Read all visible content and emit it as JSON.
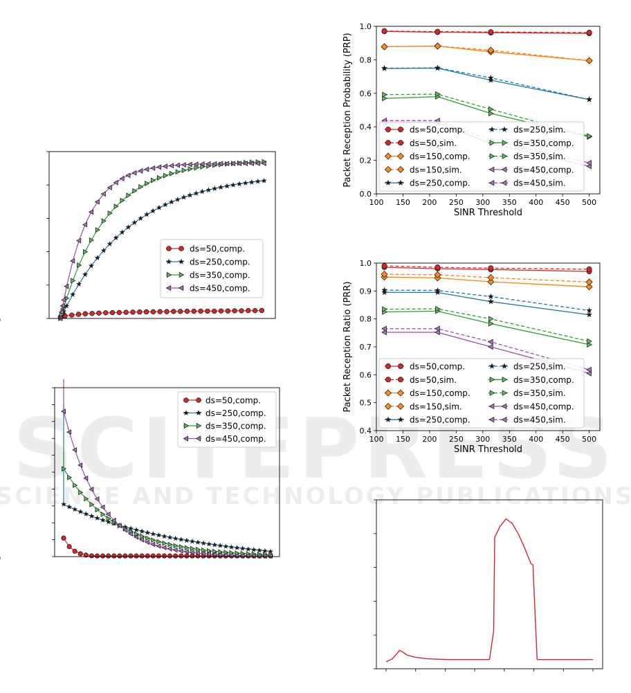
{
  "watermark": {
    "line1": "SCITEPRESS",
    "line2": "SCIENCE AND TECHNOLOGY PUBLICATIONS"
  },
  "colors": {
    "red": "#d62728",
    "redFill": "#d62728",
    "orange": "#ff7f0e",
    "orangeFill": "#ff8c1a",
    "blue": "#1f77b4",
    "blueFill": "#1f3040",
    "green": "#2ca02c",
    "greenFill": "#5cc05c",
    "purple": "#9b4ea8",
    "purpleFill": "#b070c0"
  },
  "chart_data": [
    {
      "id": "top-left",
      "type": "line",
      "title": "",
      "xlabel": "",
      "ylabel": "",
      "xlim": [
        0,
        1
      ],
      "ylim": [
        0,
        1
      ],
      "grid": false,
      "legend": "center-right",
      "series": [
        {
          "name": "ds=50,comp.",
          "color": "red",
          "marker": "o",
          "linestyle": "solid",
          "x": [
            0.05,
            0.07,
            0.1,
            0.13,
            0.16,
            0.19,
            0.22,
            0.25,
            0.28,
            0.31,
            0.34,
            0.37,
            0.4,
            0.43,
            0.46,
            0.49,
            0.52,
            0.55,
            0.58,
            0.61,
            0.64,
            0.67,
            0.7,
            0.73,
            0.76,
            0.79,
            0.82,
            0.85,
            0.88,
            0.91,
            0.94
          ],
          "y": [
            0.01,
            0.015,
            0.02,
            0.025,
            0.028,
            0.03,
            0.032,
            0.034,
            0.035,
            0.036,
            0.037,
            0.038,
            0.039,
            0.04,
            0.04,
            0.041,
            0.041,
            0.042,
            0.042,
            0.043,
            0.043,
            0.044,
            0.044,
            0.044,
            0.045,
            0.045,
            0.046,
            0.046,
            0.047,
            0.047,
            0.048
          ]
        },
        {
          "name": "ds=250,comp.",
          "color": "blue",
          "marker": "*",
          "linestyle": "solid",
          "x": [],
          "y": [],
          "gen": {
            "k": 3.3,
            "A": 0.87
          }
        },
        {
          "name": "ds=350,comp.",
          "color": "green",
          "marker": ">",
          "linestyle": "solid",
          "x": [],
          "y": [],
          "gen": {
            "k": 5.0,
            "A": 0.95
          }
        },
        {
          "name": "ds=450,comp.",
          "color": "purple",
          "marker": "<",
          "linestyle": "solid",
          "x": [],
          "y": [],
          "gen": {
            "k": 8.5,
            "A": 0.93
          }
        }
      ]
    },
    {
      "id": "top-right",
      "type": "line",
      "title": "",
      "xlabel": "SINR Threshold",
      "ylabel": "Packet Reception Probability (PRP)",
      "xlim": [
        100,
        520
      ],
      "ylim": [
        0.0,
        1.0
      ],
      "xticks": [
        100,
        150,
        200,
        250,
        300,
        350,
        400,
        450,
        500
      ],
      "yticks": [
        0.0,
        0.2,
        0.4,
        0.6,
        0.8,
        1.0
      ],
      "ytick_labels": [
        "0.0",
        "0.2",
        "0.4",
        "0.6",
        "0.8",
        "1.0"
      ],
      "grid": false,
      "legend": "lower-center",
      "x": [
        115,
        215,
        315,
        500
      ],
      "series": [
        {
          "name": "ds=50,comp.",
          "color": "red",
          "marker": "o",
          "dashed": false,
          "y": [
            0.97,
            0.965,
            0.962,
            0.958
          ]
        },
        {
          "name": "ds=50,sim.",
          "color": "red",
          "marker": "o",
          "dashed": true,
          "y": [
            0.972,
            0.968,
            0.966,
            0.963
          ]
        },
        {
          "name": "ds=150,comp.",
          "color": "orange",
          "marker": "D",
          "dashed": false,
          "y": [
            0.878,
            0.882,
            0.848,
            0.795
          ]
        },
        {
          "name": "ds=150,sim.",
          "color": "orange",
          "marker": "D",
          "dashed": true,
          "y": [
            0.878,
            0.882,
            0.857,
            0.795
          ]
        },
        {
          "name": "ds=250,comp.",
          "color": "blue",
          "marker": "*",
          "dashed": false,
          "y": [
            0.748,
            0.75,
            0.678,
            0.563
          ]
        },
        {
          "name": "ds=250,sim.",
          "color": "blue",
          "marker": "*",
          "dashed": true,
          "y": [
            0.75,
            0.752,
            0.692,
            0.563
          ]
        },
        {
          "name": "ds=350,comp.",
          "color": "green",
          "marker": ">",
          "dashed": false,
          "y": [
            0.57,
            0.58,
            0.48,
            0.34
          ]
        },
        {
          "name": "ds=350,sim.",
          "color": "green",
          "marker": ">",
          "dashed": true,
          "y": [
            0.592,
            0.595,
            0.505,
            0.345
          ]
        },
        {
          "name": "ds=450,comp.",
          "color": "purple",
          "marker": "<",
          "dashed": false,
          "y": [
            0.425,
            0.425,
            0.3,
            0.165
          ]
        },
        {
          "name": "ds=450,sim.",
          "color": "purple",
          "marker": "<",
          "dashed": true,
          "y": [
            0.437,
            0.437,
            0.32,
            0.185
          ]
        }
      ]
    },
    {
      "id": "mid-left",
      "type": "line",
      "title": "",
      "xlabel": "",
      "ylabel": "",
      "xlim": [
        0,
        1
      ],
      "ylim": [
        0,
        1
      ],
      "grid": false,
      "legend": "top-right",
      "series": [
        {
          "name": "ds=50,comp.",
          "color": "red",
          "marker": "o"
        },
        {
          "name": "ds=250,comp.",
          "color": "blue",
          "marker": "*"
        },
        {
          "name": "ds=350,comp.",
          "color": "green",
          "marker": ">"
        },
        {
          "name": "ds=450,comp.",
          "color": "purple",
          "marker": "<"
        }
      ]
    },
    {
      "id": "mid-right",
      "type": "line",
      "title": "",
      "xlabel": "SINR Threshold",
      "ylabel": "Packet Reception Ratio (PRR)",
      "xlim": [
        100,
        520
      ],
      "ylim": [
        0.4,
        1.0
      ],
      "xticks": [
        100,
        150,
        200,
        250,
        300,
        350,
        400,
        450,
        500
      ],
      "yticks": [
        0.4,
        0.5,
        0.6,
        0.7,
        0.8,
        0.9,
        1.0
      ],
      "ytick_labels": [
        "0.4",
        "0.5",
        "0.6",
        "0.7",
        "0.8",
        "0.9",
        "1.0"
      ],
      "grid": false,
      "legend": "lower-center",
      "x": [
        115,
        215,
        315,
        500
      ],
      "series": [
        {
          "name": "ds=50,comp.",
          "color": "red",
          "marker": "o",
          "dashed": false,
          "y": [
            0.985,
            0.98,
            0.977,
            0.97
          ]
        },
        {
          "name": "ds=50,sim.",
          "color": "red",
          "marker": "o",
          "dashed": true,
          "y": [
            0.99,
            0.985,
            0.982,
            0.978
          ]
        },
        {
          "name": "ds=150,comp.",
          "color": "orange",
          "marker": "D",
          "dashed": false,
          "y": [
            0.95,
            0.947,
            0.933,
            0.915
          ]
        },
        {
          "name": "ds=150,sim.",
          "color": "orange",
          "marker": "D",
          "dashed": true,
          "y": [
            0.96,
            0.958,
            0.948,
            0.932
          ]
        },
        {
          "name": "ds=250,comp.",
          "color": "blue",
          "marker": "*",
          "dashed": false,
          "y": [
            0.895,
            0.895,
            0.862,
            0.815
          ]
        },
        {
          "name": "ds=250,sim.",
          "color": "blue",
          "marker": "*",
          "dashed": true,
          "y": [
            0.903,
            0.902,
            0.88,
            0.83
          ]
        },
        {
          "name": "ds=350,comp.",
          "color": "green",
          "marker": ">",
          "dashed": false,
          "y": [
            0.825,
            0.828,
            0.783,
            0.708
          ]
        },
        {
          "name": "ds=350,sim.",
          "color": "green",
          "marker": ">",
          "dashed": true,
          "y": [
            0.835,
            0.836,
            0.8,
            0.72
          ]
        },
        {
          "name": "ds=450,comp.",
          "color": "purple",
          "marker": "<",
          "dashed": false,
          "y": [
            0.752,
            0.752,
            0.7,
            0.605
          ]
        },
        {
          "name": "ds=450,sim.",
          "color": "purple",
          "marker": "<",
          "dashed": true,
          "y": [
            0.765,
            0.765,
            0.718,
            0.618
          ]
        }
      ]
    },
    {
      "id": "bottom-right",
      "type": "line",
      "title": "",
      "xlabel": "",
      "ylabel": "",
      "xlim": [
        0,
        1
      ],
      "ylim": [
        0,
        1
      ],
      "grid": false,
      "series": [
        {
          "name": "",
          "color": "red",
          "marker": "",
          "x": [
            0.0,
            0.03,
            0.05,
            0.065,
            0.08,
            0.1,
            0.14,
            0.2,
            0.3,
            0.4,
            0.5,
            0.52,
            0.525,
            0.55,
            0.58,
            0.61,
            0.64,
            0.67,
            0.7,
            0.71,
            0.73,
            0.78,
            0.85,
            1.0
          ],
          "y": [
            0.0,
            0.02,
            0.05,
            0.075,
            0.065,
            0.045,
            0.03,
            0.02,
            0.015,
            0.015,
            0.015,
            0.2,
            0.81,
            0.88,
            0.93,
            0.9,
            0.83,
            0.74,
            0.64,
            0.63,
            0.015,
            0.015,
            0.015,
            0.015
          ]
        }
      ]
    }
  ]
}
